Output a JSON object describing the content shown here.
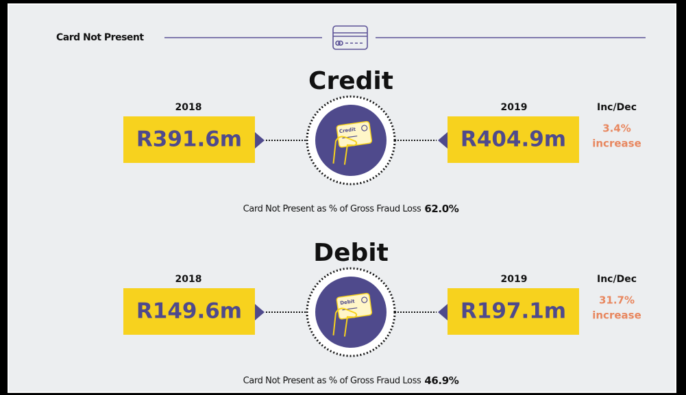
{
  "header": {
    "title": "Card Not Present"
  },
  "sections": [
    {
      "title": "Credit",
      "card_label": "Credit",
      "left": {
        "year": "2018",
        "value": "R391.6m"
      },
      "right": {
        "year": "2019",
        "value": "R404.9m"
      },
      "change_heading": "Inc/Dec",
      "change_value": "3.4%",
      "change_text": "increase",
      "footer_text": "Card Not Present as % of Gross Fraud Loss",
      "footer_value": "62.0%"
    },
    {
      "title": "Debit",
      "card_label": "Debit",
      "left": {
        "year": "2018",
        "value": "R149.6m"
      },
      "right": {
        "year": "2019",
        "value": "R197.1m"
      },
      "change_heading": "Inc/Dec",
      "change_value": "31.7%",
      "change_text": "increase",
      "footer_text": "Card Not Present as % of Gross Fraud Loss",
      "footer_value": "46.9%"
    }
  ]
}
